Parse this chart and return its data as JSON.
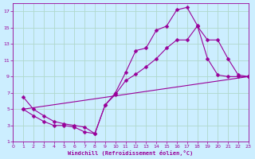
{
  "xlabel": "Windchill (Refroidissement éolien,°C)",
  "bg_color": "#cceeff",
  "grid_color": "#b0d8cc",
  "line_color": "#990099",
  "xlim": [
    0,
    23
  ],
  "ylim": [
    1,
    18
  ],
  "xticks": [
    0,
    1,
    2,
    3,
    4,
    5,
    6,
    7,
    8,
    9,
    10,
    11,
    12,
    13,
    14,
    15,
    16,
    17,
    18,
    19,
    20,
    21,
    22,
    23
  ],
  "yticks": [
    1,
    3,
    5,
    7,
    9,
    11,
    13,
    15,
    17
  ],
  "line1_x": [
    1,
    2,
    3,
    4,
    5,
    6,
    7,
    8,
    9,
    10,
    11,
    12,
    13,
    14,
    15,
    16,
    17,
    18,
    19,
    20,
    21,
    22,
    23
  ],
  "line1_y": [
    6.5,
    5.0,
    4.2,
    3.5,
    3.2,
    3.0,
    2.8,
    2.0,
    5.5,
    7.0,
    9.5,
    12.2,
    12.5,
    14.7,
    15.2,
    17.2,
    17.5,
    15.3,
    11.2,
    9.2,
    9.0,
    9.0,
    9.0
  ],
  "line2_x": [
    1,
    2,
    3,
    4,
    5,
    6,
    7,
    8,
    9,
    10,
    11,
    12,
    13,
    14,
    15,
    16,
    17,
    18,
    19,
    20,
    21,
    22,
    23
  ],
  "line2_y": [
    5.0,
    4.2,
    3.5,
    3.0,
    3.0,
    2.8,
    2.2,
    2.0,
    5.5,
    6.8,
    8.5,
    9.3,
    10.2,
    11.2,
    12.5,
    13.5,
    13.5,
    15.2,
    13.5,
    13.5,
    11.2,
    9.2,
    9.0
  ],
  "line3_x": [
    1,
    23
  ],
  "line3_y": [
    5.0,
    9.0
  ]
}
